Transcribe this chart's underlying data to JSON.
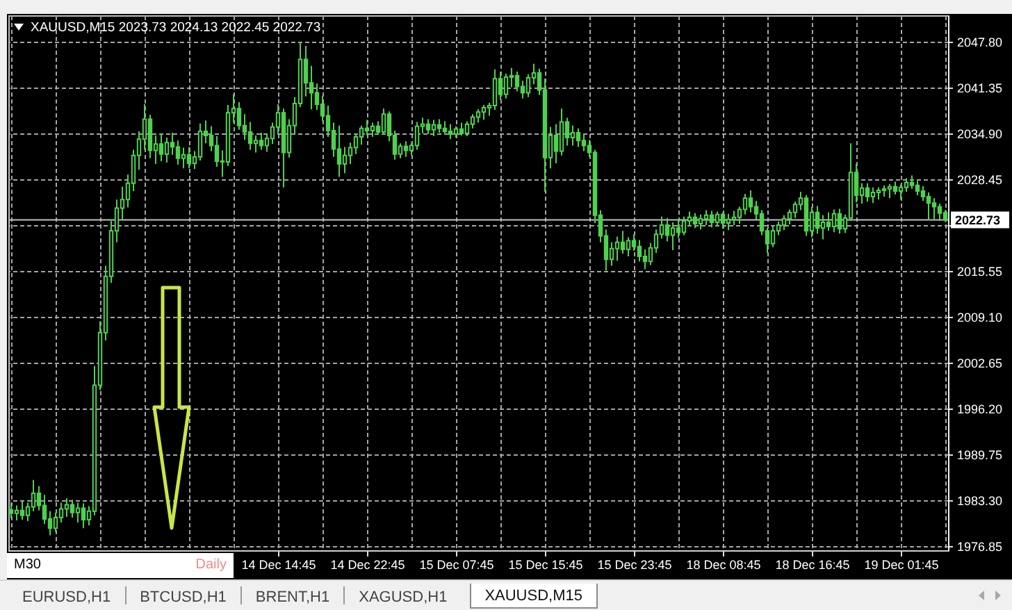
{
  "chart_data": {
    "type": "candlestick",
    "title": "XAUUSD,M15 2023.73 2024.13 2022.45 2022.73",
    "categories": [
      null,
      null,
      null,
      null,
      null,
      null,
      null,
      null,
      null,
      null,
      null,
      null,
      null,
      null,
      null,
      null,
      null,
      null,
      null,
      null,
      null,
      null,
      null,
      null,
      null,
      null,
      null,
      null,
      null,
      null,
      null,
      null,
      null,
      null,
      null,
      null,
      null,
      null,
      null,
      null,
      null,
      null,
      null,
      null,
      null,
      null,
      null,
      null,
      "14 Dec 14:45",
      null,
      null,
      null,
      null,
      null,
      null,
      null,
      null,
      null,
      null,
      null,
      null,
      null,
      null,
      null,
      "14 Dec 22:45",
      null,
      null,
      null,
      null,
      null,
      null,
      null,
      null,
      null,
      null,
      null,
      null,
      null,
      null,
      null,
      "15 Dec 07:45",
      null,
      null,
      null,
      null,
      null,
      null,
      null,
      null,
      null,
      null,
      null,
      null,
      null,
      null,
      null,
      "15 Dec 15:45",
      null,
      null,
      null,
      null,
      null,
      null,
      null,
      null,
      null,
      null,
      null,
      null,
      null,
      null,
      null,
      "15 Dec 23:45",
      null,
      null,
      null,
      null,
      null,
      null,
      null,
      null,
      null,
      null,
      null,
      null,
      null,
      null,
      null,
      "18 Dec 08:45",
      null,
      null,
      null,
      null,
      null,
      null,
      null,
      null,
      null,
      null,
      null,
      null,
      null,
      null,
      null,
      "18 Dec 16:45",
      null,
      null,
      null,
      null,
      null,
      null,
      null,
      null,
      null,
      null,
      null,
      null,
      null,
      null,
      null,
      "19 Dec 01:45",
      null,
      null,
      null,
      null,
      null,
      null,
      null,
      null
    ],
    "ohlc": [
      [
        1982.0,
        1983.0,
        1980.8,
        1981.5
      ],
      [
        1981.5,
        1982.6,
        1980.5,
        1981.9
      ],
      [
        1981.9,
        1983.2,
        1980.6,
        1981.2
      ],
      [
        1981.2,
        1983.0,
        1980.4,
        1982.4
      ],
      [
        1982.4,
        1986.2,
        1981.8,
        1984.3
      ],
      [
        1984.3,
        1985.3,
        1981.9,
        1982.6
      ],
      [
        1982.6,
        1984.1,
        1980.0,
        1980.7
      ],
      [
        1980.7,
        1981.8,
        1978.4,
        1979.4
      ],
      [
        1979.4,
        1981.6,
        1978.9,
        1980.9
      ],
      [
        1980.9,
        1983.0,
        1980.2,
        1982.1
      ],
      [
        1982.1,
        1983.6,
        1981.0,
        1982.7
      ],
      [
        1982.7,
        1983.4,
        1980.9,
        1981.6
      ],
      [
        1981.6,
        1983.0,
        1980.2,
        1982.2
      ],
      [
        1982.2,
        1982.9,
        1979.4,
        1980.6
      ],
      [
        1980.6,
        1982.5,
        1979.8,
        1981.8
      ],
      [
        1981.8,
        2002.2,
        1981.2,
        1999.5
      ],
      [
        1999.5,
        2008.5,
        1998.8,
        2006.9
      ],
      [
        2006.9,
        2016.3,
        2005.8,
        2014.8
      ],
      [
        2014.8,
        2022.6,
        2013.9,
        2021.2
      ],
      [
        2021.2,
        2025.6,
        2019.6,
        2024.4
      ],
      [
        2024.4,
        2027.4,
        2022.8,
        2025.6
      ],
      [
        2025.6,
        2029.1,
        2024.5,
        2027.9
      ],
      [
        2027.9,
        2032.6,
        2026.8,
        2031.8
      ],
      [
        2031.8,
        2035.2,
        2029.8,
        2034.1
      ],
      [
        2034.1,
        2039.0,
        2032.6,
        2036.9
      ],
      [
        2036.9,
        2037.5,
        2031.4,
        2032.5
      ],
      [
        2032.5,
        2034.6,
        2030.6,
        2033.4
      ],
      [
        2033.4,
        2034.8,
        2031.0,
        2032.0
      ],
      [
        2032.0,
        2034.3,
        2030.8,
        2033.6
      ],
      [
        2033.6,
        2035.0,
        2031.9,
        2033.0
      ],
      [
        2033.0,
        2033.9,
        2030.5,
        2031.4
      ],
      [
        2031.4,
        2032.9,
        2030.0,
        2031.9
      ],
      [
        2031.9,
        2033.0,
        2030.0,
        2030.7
      ],
      [
        2030.7,
        2032.4,
        2029.9,
        2031.6
      ],
      [
        2031.6,
        2036.3,
        2031.1,
        2035.2
      ],
      [
        2035.2,
        2036.7,
        2033.5,
        2034.6
      ],
      [
        2034.6,
        2035.9,
        2032.4,
        2033.2
      ],
      [
        2033.2,
        2034.5,
        2030.2,
        2031.0
      ],
      [
        2031.0,
        2032.5,
        2028.8,
        2030.9
      ],
      [
        2030.9,
        2038.9,
        2030.3,
        2037.8
      ],
      [
        2037.8,
        2040.4,
        2036.4,
        2038.4
      ],
      [
        2038.4,
        2039.3,
        2035.4,
        2036.0
      ],
      [
        2036.0,
        2037.6,
        2034.0,
        2035.1
      ],
      [
        2035.1,
        2036.5,
        2032.6,
        2033.5
      ],
      [
        2033.5,
        2034.6,
        2032.2,
        2033.9
      ],
      [
        2033.9,
        2035.0,
        2032.6,
        2033.2
      ],
      [
        2033.2,
        2034.7,
        2032.3,
        2034.2
      ],
      [
        2034.2,
        2036.4,
        2033.4,
        2035.8
      ],
      [
        2035.8,
        2039.0,
        2034.7,
        2037.8
      ],
      [
        2037.8,
        2038.4,
        2027.3,
        2032.2
      ],
      [
        2032.2,
        2036.9,
        2031.5,
        2036.0
      ],
      [
        2036.0,
        2040.0,
        2034.9,
        2039.1
      ],
      [
        2039.1,
        2047.8,
        2038.6,
        2045.3
      ],
      [
        2045.3,
        2047.2,
        2040.1,
        2042.0
      ],
      [
        2042.0,
        2044.4,
        2038.3,
        2040.6
      ],
      [
        2040.6,
        2041.9,
        2038.2,
        2039.0
      ],
      [
        2039.0,
        2040.2,
        2036.6,
        2037.4
      ],
      [
        2037.4,
        2038.8,
        2034.4,
        2035.3
      ],
      [
        2035.3,
        2036.4,
        2031.6,
        2032.7
      ],
      [
        2032.7,
        2036.0,
        2028.8,
        2030.6
      ],
      [
        2030.6,
        2033.0,
        2029.3,
        2031.8
      ],
      [
        2031.8,
        2033.6,
        2030.6,
        2032.9
      ],
      [
        2032.9,
        2034.9,
        2032.0,
        2034.4
      ],
      [
        2034.4,
        2036.0,
        2033.3,
        2035.6
      ],
      [
        2035.6,
        2036.8,
        2034.6,
        2035.3
      ],
      [
        2035.3,
        2036.4,
        2034.4,
        2035.9
      ],
      [
        2035.9,
        2036.6,
        2034.7,
        2035.1
      ],
      [
        2035.1,
        2038.4,
        2034.7,
        2037.6
      ],
      [
        2037.6,
        2038.0,
        2033.8,
        2034.6
      ],
      [
        2034.6,
        2035.3,
        2031.2,
        2032.0
      ],
      [
        2032.0,
        2033.5,
        2031.4,
        2033.1
      ],
      [
        2033.1,
        2033.8,
        2031.6,
        2032.5
      ],
      [
        2032.5,
        2033.6,
        2031.8,
        2033.2
      ],
      [
        2033.2,
        2036.5,
        2032.6,
        2035.9
      ],
      [
        2035.9,
        2037.1,
        2034.9,
        2036.2
      ],
      [
        2036.2,
        2036.9,
        2034.8,
        2035.4
      ],
      [
        2035.4,
        2036.8,
        2034.5,
        2036.1
      ],
      [
        2036.1,
        2036.9,
        2035.0,
        2035.6
      ],
      [
        2035.6,
        2036.6,
        2034.7,
        2035.2
      ],
      [
        2035.2,
        2036.2,
        2034.1,
        2034.8
      ],
      [
        2034.8,
        2035.9,
        2034.3,
        2035.5
      ],
      [
        2035.5,
        2036.4,
        2034.6,
        2034.9
      ],
      [
        2034.9,
        2036.6,
        2034.5,
        2036.2
      ],
      [
        2036.2,
        2037.6,
        2035.6,
        2037.2
      ],
      [
        2037.2,
        2038.3,
        2036.4,
        2037.9
      ],
      [
        2037.9,
        2038.9,
        2036.8,
        2038.5
      ],
      [
        2038.5,
        2039.2,
        2037.4,
        2038.8
      ],
      [
        2038.8,
        2043.9,
        2038.2,
        2042.6
      ],
      [
        2042.6,
        2043.6,
        2039.6,
        2040.4
      ],
      [
        2040.4,
        2043.3,
        2039.8,
        2042.8
      ],
      [
        2042.8,
        2044.1,
        2041.4,
        2043.0
      ],
      [
        2043.0,
        2043.6,
        2040.8,
        2041.5
      ],
      [
        2041.5,
        2042.3,
        2039.8,
        2040.6
      ],
      [
        2040.6,
        2043.2,
        2040.0,
        2042.7
      ],
      [
        2042.7,
        2044.7,
        2041.8,
        2043.4
      ],
      [
        2043.4,
        2044.0,
        2040.3,
        2041.0
      ],
      [
        2041.0,
        2042.6,
        2026.7,
        2031.5
      ],
      [
        2031.5,
        2035.8,
        2030.0,
        2034.6
      ],
      [
        2034.6,
        2036.2,
        2030.7,
        2032.4
      ],
      [
        2032.4,
        2038.4,
        2031.8,
        2036.5
      ],
      [
        2036.5,
        2037.1,
        2033.2,
        2034.3
      ],
      [
        2034.3,
        2036.0,
        2033.2,
        2035.0
      ],
      [
        2035.0,
        2035.6,
        2033.0,
        2033.9
      ],
      [
        2033.9,
        2034.8,
        2032.4,
        2033.2
      ],
      [
        2033.2,
        2034.0,
        2031.6,
        2032.2
      ],
      [
        2032.2,
        2032.6,
        2022.3,
        2023.4
      ],
      [
        2023.4,
        2024.1,
        2019.6,
        2020.5
      ],
      [
        2020.5,
        2021.4,
        2015.6,
        2017.2
      ],
      [
        2017.2,
        2019.6,
        2016.3,
        2018.7
      ],
      [
        2018.7,
        2020.4,
        2017.0,
        2019.6
      ],
      [
        2019.6,
        2021.2,
        2018.0,
        2018.6
      ],
      [
        2018.6,
        2020.3,
        2017.6,
        2019.8
      ],
      [
        2019.8,
        2020.7,
        2018.4,
        2019.0
      ],
      [
        2019.0,
        2019.9,
        2016.9,
        2017.6
      ],
      [
        2017.6,
        2018.6,
        2015.8,
        2016.9
      ],
      [
        2016.9,
        2019.5,
        2016.4,
        2018.8
      ],
      [
        2018.8,
        2021.4,
        2018.1,
        2020.7
      ],
      [
        2020.7,
        2023.2,
        2020.1,
        2022.0
      ],
      [
        2022.0,
        2023.0,
        2019.7,
        2020.6
      ],
      [
        2020.6,
        2022.4,
        2018.5,
        2021.6
      ],
      [
        2021.6,
        2022.8,
        2020.2,
        2021.0
      ],
      [
        2021.0,
        2023.2,
        2020.6,
        2022.6
      ],
      [
        2022.6,
        2023.9,
        2021.8,
        2023.1
      ],
      [
        2023.1,
        2023.7,
        2021.6,
        2022.2
      ],
      [
        2022.2,
        2023.5,
        2021.4,
        2022.9
      ],
      [
        2022.9,
        2024.1,
        2022.0,
        2023.4
      ],
      [
        2023.4,
        2024.0,
        2021.7,
        2022.4
      ],
      [
        2022.4,
        2023.9,
        2021.9,
        2023.5
      ],
      [
        2023.5,
        2023.8,
        2021.5,
        2022.3
      ],
      [
        2022.3,
        2023.6,
        2021.3,
        2022.8
      ],
      [
        2022.8,
        2024.0,
        2022.0,
        2023.1
      ],
      [
        2023.1,
        2024.6,
        2022.2,
        2024.2
      ],
      [
        2024.2,
        2026.4,
        2023.5,
        2025.8
      ],
      [
        2025.8,
        2026.9,
        2023.8,
        2024.6
      ],
      [
        2024.6,
        2025.4,
        2022.8,
        2023.6
      ],
      [
        2023.6,
        2024.1,
        2020.6,
        2021.2
      ],
      [
        2021.2,
        2021.6,
        2018.1,
        2019.4
      ],
      [
        2019.4,
        2021.8,
        2018.9,
        2021.2
      ],
      [
        2021.2,
        2022.5,
        2020.6,
        2022.0
      ],
      [
        2022.0,
        2023.4,
        2021.3,
        2022.9
      ],
      [
        2022.9,
        2024.2,
        2022.1,
        2023.8
      ],
      [
        2023.8,
        2025.3,
        2023.0,
        2024.9
      ],
      [
        2024.9,
        2026.7,
        2024.1,
        2025.8
      ],
      [
        2025.8,
        2026.2,
        2020.5,
        2021.2
      ],
      [
        2021.2,
        2024.6,
        2020.3,
        2023.8
      ],
      [
        2023.8,
        2024.7,
        2020.8,
        2021.6
      ],
      [
        2021.6,
        2023.4,
        2020.0,
        2022.4
      ],
      [
        2022.4,
        2023.8,
        2021.2,
        2021.8
      ],
      [
        2021.8,
        2024.2,
        2021.0,
        2023.6
      ],
      [
        2023.6,
        2024.3,
        2020.8,
        2021.5
      ],
      [
        2021.5,
        2023.5,
        2020.9,
        2023.0
      ],
      [
        2023.0,
        2033.5,
        2022.6,
        2029.4
      ],
      [
        2029.4,
        2030.6,
        2025.2,
        2026.2
      ],
      [
        2026.2,
        2027.9,
        2025.0,
        2027.2
      ],
      [
        2027.2,
        2027.9,
        2025.3,
        2026.0
      ],
      [
        2026.0,
        2027.3,
        2025.1,
        2026.6
      ],
      [
        2026.6,
        2027.3,
        2025.6,
        2026.9
      ],
      [
        2026.9,
        2027.6,
        2026.0,
        2027.1
      ],
      [
        2027.1,
        2027.8,
        2025.8,
        2027.4
      ],
      [
        2027.4,
        2028.1,
        2026.3,
        2026.8
      ],
      [
        2026.8,
        2027.7,
        2025.6,
        2027.3
      ],
      [
        2027.3,
        2028.6,
        2026.7,
        2028.0
      ],
      [
        2028.0,
        2029.0,
        2027.1,
        2027.6
      ],
      [
        2027.6,
        2028.2,
        2026.2,
        2026.8
      ],
      [
        2026.8,
        2027.5,
        2025.4,
        2026.0
      ],
      [
        2026.0,
        2026.6,
        2022.7,
        2025.1
      ],
      [
        2025.1,
        2025.8,
        2022.8,
        2024.6
      ],
      [
        2024.6,
        2025.0,
        2022.6,
        2023.7
      ],
      [
        2023.73,
        2024.13,
        2022.45,
        2022.73
      ]
    ],
    "color": "#4fd14f",
    "ylim": [
      1976.3,
      2051.5
    ],
    "yticks": [
      {
        "value": 2047.8,
        "label": "2047.80"
      },
      2041.35,
      {
        "value": 2034.9,
        "label": "2034.90"
      },
      2028.45,
      {
        "value": 2022,
        "label": null
      },
      2015.55,
      {
        "value": 2009.1,
        "label": "2009.10"
      },
      2002.65,
      {
        "value": 1996.2,
        "label": "1996.20"
      },
      1989.75,
      {
        "value": 1983.3,
        "label": "1983.30"
      },
      1976.85
    ],
    "grid": true,
    "ref_lines": [
      {
        "axis": "y",
        "value": 2022.73,
        "label": "2022.73",
        "color": "#c0c0c0"
      }
    ],
    "annotations": [
      "M30",
      "Daily",
      "EURUSD,H1",
      "BTCUSD,H1",
      "BRENT,H1",
      "XAGUSD,H1",
      "XAUUSD,M15"
    ]
  }
}
